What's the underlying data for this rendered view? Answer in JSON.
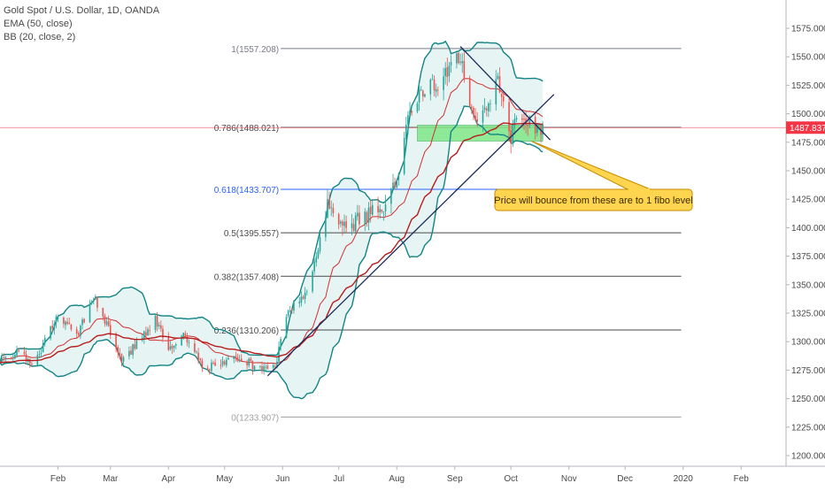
{
  "legend": {
    "line1": "Gold Spot / U.S. Dollar, 1D, OANDA",
    "line2": "EMA (50, close)",
    "line3": "BB (20, close, 2)"
  },
  "annotation": {
    "text": "Price will bounce from these are to 1 fibo level"
  },
  "current_price": {
    "label": "1487.837",
    "value": 1487.837,
    "color": "#f23645"
  },
  "colors": {
    "up": "#26a69a",
    "down": "#ef5350",
    "bb": "#138484",
    "bb_fill": "#e6f4f4",
    "ema": "#b71c1c",
    "trend": "#1a2a5a",
    "zone": "#7ee787",
    "annotation_bg": "#ffd54f",
    "annotation_border": "#c78a00",
    "fib_0618": "#2962ff"
  },
  "chart_data": {
    "type": "candlestick",
    "title": "Gold Spot / U.S. Dollar, 1D, OANDA",
    "indicators": [
      "EMA (50, close)",
      "BB (20, close, 2)"
    ],
    "ylim": [
      1190,
      1590
    ],
    "y_ticks": [
      1200,
      1225,
      1250,
      1275,
      1300,
      1325,
      1350,
      1375,
      1400,
      1425,
      1450,
      1475,
      1500,
      1525,
      1550,
      1575
    ],
    "y_tick_labels": [
      "1200.000",
      "1225.000",
      "1250.000",
      "1275.000",
      "1300.000",
      "1325.000",
      "1350.000",
      "1375.000",
      "1400.000",
      "1425.000",
      "1450.000",
      "1475.000",
      "1500.000",
      "1525.000",
      "1550.000",
      "1575.000"
    ],
    "x_range": [
      "2019-01-01",
      "2020-02-25"
    ],
    "x_ticks": [
      {
        "date": "2019-02-01",
        "label": "Feb"
      },
      {
        "date": "2019-03-01",
        "label": "Mar"
      },
      {
        "date": "2019-04-01",
        "label": "Apr"
      },
      {
        "date": "2019-05-01",
        "label": "May"
      },
      {
        "date": "2019-06-01",
        "label": "Jun"
      },
      {
        "date": "2019-07-01",
        "label": "Jul"
      },
      {
        "date": "2019-08-01",
        "label": "Aug"
      },
      {
        "date": "2019-09-01",
        "label": "Sep"
      },
      {
        "date": "2019-10-01",
        "label": "Oct"
      },
      {
        "date": "2019-11-01",
        "label": "Nov"
      },
      {
        "date": "2019-12-01",
        "label": "Dec"
      },
      {
        "date": "2020-01-01",
        "label": "2020"
      },
      {
        "date": "2020-02-01",
        "label": "Feb"
      }
    ],
    "close_path": [
      [
        "2019-01-01",
        1282
      ],
      [
        "2019-01-10",
        1290
      ],
      [
        "2019-01-20",
        1282
      ],
      [
        "2019-01-31",
        1320
      ],
      [
        "2019-02-12",
        1308
      ],
      [
        "2019-02-20",
        1340
      ],
      [
        "2019-03-01",
        1308
      ],
      [
        "2019-03-07",
        1283
      ],
      [
        "2019-03-15",
        1298
      ],
      [
        "2019-03-25",
        1320
      ],
      [
        "2019-04-01",
        1295
      ],
      [
        "2019-04-10",
        1305
      ],
      [
        "2019-04-20",
        1276
      ],
      [
        "2019-04-30",
        1282
      ],
      [
        "2019-05-10",
        1285
      ],
      [
        "2019-05-20",
        1275
      ],
      [
        "2019-05-28",
        1280
      ],
      [
        "2019-06-05",
        1330
      ],
      [
        "2019-06-15",
        1345
      ],
      [
        "2019-06-25",
        1420
      ],
      [
        "2019-07-05",
        1400
      ],
      [
        "2019-07-15",
        1410
      ],
      [
        "2019-07-25",
        1420
      ],
      [
        "2019-08-01",
        1440
      ],
      [
        "2019-08-07",
        1500
      ],
      [
        "2019-08-15",
        1520
      ],
      [
        "2019-08-25",
        1530
      ],
      [
        "2019-09-04",
        1552
      ],
      [
        "2019-09-10",
        1500
      ],
      [
        "2019-09-18",
        1500
      ],
      [
        "2019-09-24",
        1530
      ],
      [
        "2019-10-01",
        1478
      ],
      [
        "2019-10-05",
        1505
      ],
      [
        "2019-10-12",
        1490
      ],
      [
        "2019-10-19",
        1488
      ]
    ],
    "fib_levels": [
      {
        "ratio": 1,
        "value": 1557.208,
        "label": "1(1557.208)",
        "color": "#787b86"
      },
      {
        "ratio": 0.786,
        "value": 1488.021,
        "label": "0.786(1488.021)",
        "color": "#4a4a4a"
      },
      {
        "ratio": 0.618,
        "value": 1433.707,
        "label": "0.618(1433.707)",
        "color": "#2962ff"
      },
      {
        "ratio": 0.5,
        "value": 1395.557,
        "label": "0.5(1395.557)",
        "color": "#4a4a4a"
      },
      {
        "ratio": 0.382,
        "value": 1357.408,
        "label": "0.382(1357.408)",
        "color": "#4a4a4a"
      },
      {
        "ratio": 0.236,
        "value": 1310.206,
        "label": "0.236(1310.206)",
        "color": "#4a4a4a"
      },
      {
        "ratio": 0,
        "value": 1233.907,
        "label": "0(1233.907)",
        "color": "#9e9e9e"
      }
    ],
    "fib_start_date": "2019-05-31",
    "fib_end_date": "2019-12-31",
    "trendlines": [
      {
        "name": "rising-support",
        "from": [
          "2019-05-24",
          1270
        ],
        "to": [
          "2019-10-24",
          1517
        ]
      },
      {
        "name": "falling-resistance",
        "from": [
          "2019-09-04",
          1559
        ],
        "to": [
          "2019-10-22",
          1477
        ]
      }
    ],
    "support_zone": {
      "from": "2019-08-12",
      "to": "2019-10-18",
      "low": 1476,
      "high": 1490
    },
    "annotation": {
      "date": "2019-10-12",
      "value": 1476
    }
  }
}
